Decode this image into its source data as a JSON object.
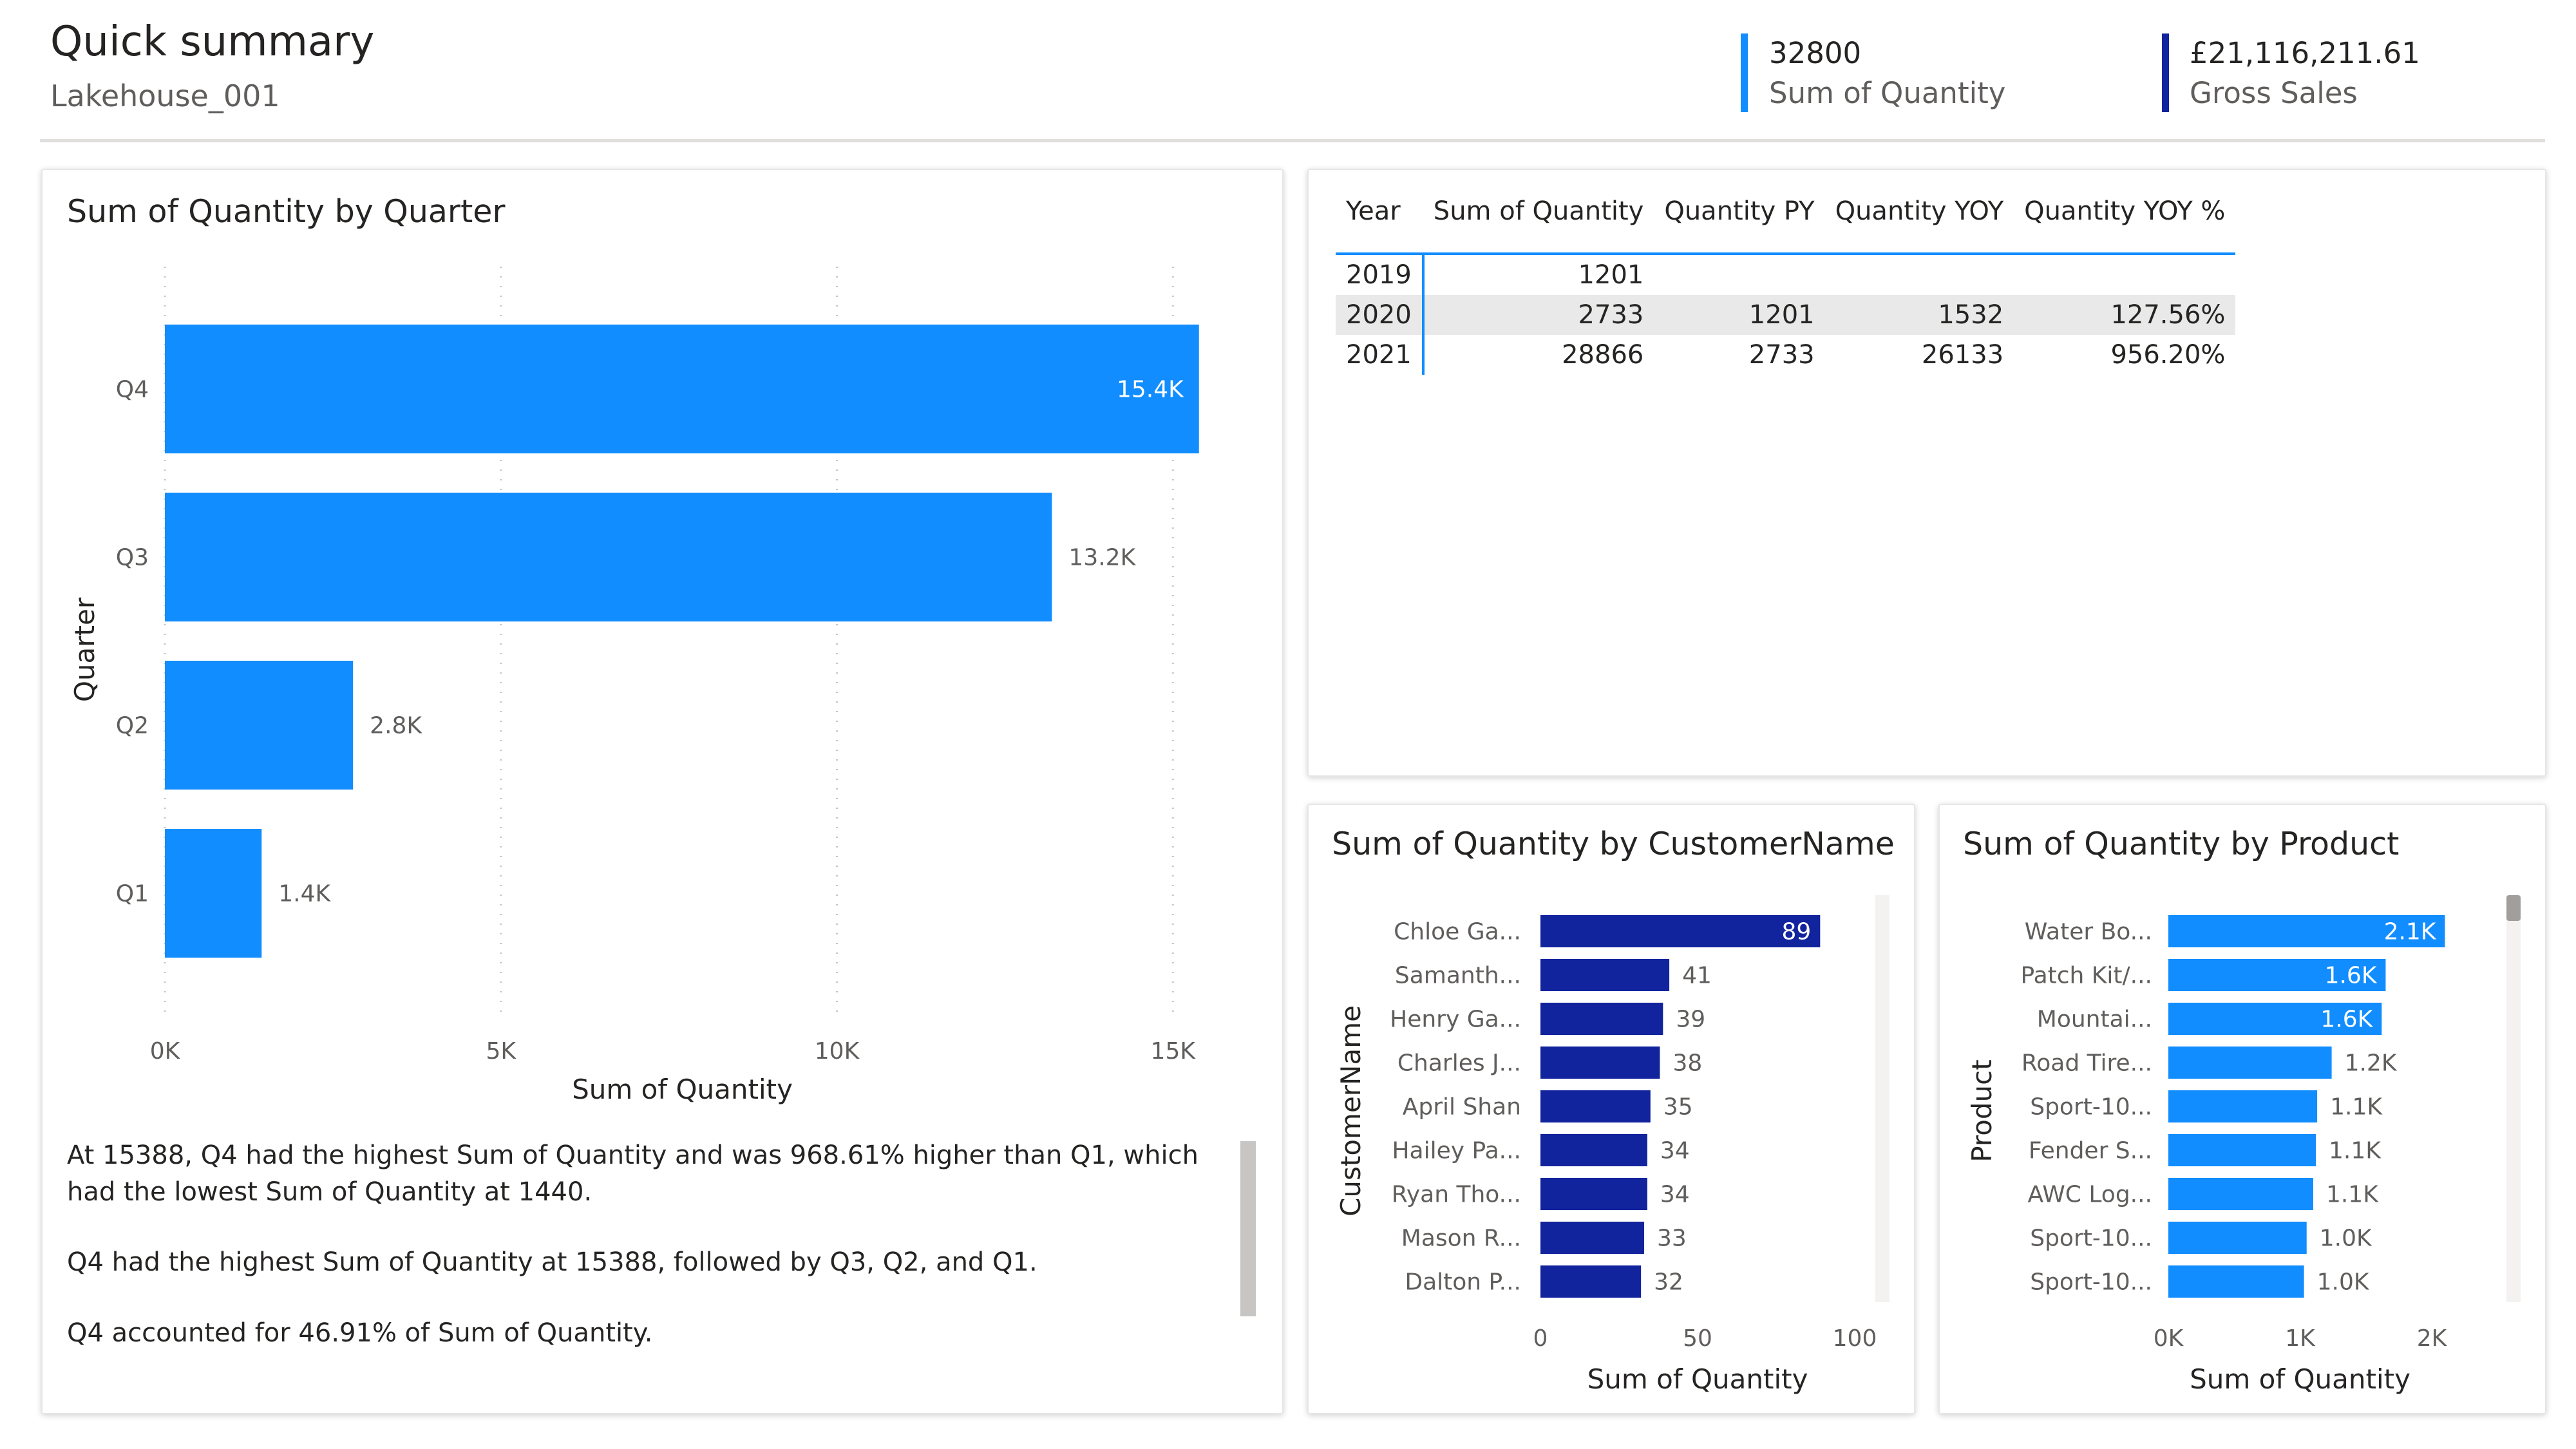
{
  "header": {
    "title": "Quick summary",
    "subtitle": "Lakehouse_001",
    "kpis": [
      {
        "value": "32800",
        "label": "Sum of Quantity",
        "color": "#118dff"
      },
      {
        "value": "£21,116,211.61",
        "label": "Gross Sales",
        "color": "#12239e"
      }
    ]
  },
  "quarter_chart": {
    "title": "Sum of Quantity by Quarter",
    "narrative": [
      "At 15388, Q4 had the highest Sum of Quantity and was 968.61% higher than Q1, which had the lowest Sum of Quantity at 1440.",
      "Q4 had the highest Sum of Quantity at 15388, followed by Q3, Q2, and Q1.",
      "Q4 accounted for 46.91% of Sum of Quantity."
    ]
  },
  "yoy_table": {
    "columns": [
      "Year",
      "Sum of Quantity",
      "Quantity PY",
      "Quantity YOY",
      "Quantity YOY %"
    ],
    "rows": [
      [
        "2019",
        "1201",
        "",
        "",
        ""
      ],
      [
        "2020",
        "2733",
        "1201",
        "1532",
        "127.56%"
      ],
      [
        "2021",
        "28866",
        "2733",
        "26133",
        "956.20%"
      ]
    ]
  },
  "customer_chart": {
    "title": "Sum of Quantity by CustomerName"
  },
  "product_chart": {
    "title": "Sum of Quantity by Product"
  },
  "chart_data": [
    {
      "type": "bar",
      "orientation": "horizontal",
      "title": "Sum of Quantity by Quarter",
      "categories": [
        "Q4",
        "Q3",
        "Q2",
        "Q1"
      ],
      "values": [
        15388,
        13200,
        2800,
        1440
      ],
      "data_labels": [
        "15.4K",
        "13.2K",
        "2.8K",
        "1.4K"
      ],
      "xlabel": "Sum of Quantity",
      "ylabel": "Quarter",
      "xlim": [
        0,
        15400
      ],
      "xticks": [
        0,
        5000,
        10000,
        15000
      ],
      "xtick_labels": [
        "0K",
        "5K",
        "10K",
        "15K"
      ],
      "grid": true,
      "color": "#118dff"
    },
    {
      "type": "bar",
      "orientation": "horizontal",
      "title": "Sum of Quantity by CustomerName",
      "categories": [
        "Chloe Ga...",
        "Samanth...",
        "Henry Ga...",
        "Charles J...",
        "April Shan",
        "Hailey Pa...",
        "Ryan Tho...",
        "Mason R...",
        "Dalton P..."
      ],
      "values": [
        89,
        41,
        39,
        38,
        35,
        34,
        34,
        33,
        32
      ],
      "data_labels": [
        "89",
        "41",
        "39",
        "38",
        "35",
        "34",
        "34",
        "33",
        "32"
      ],
      "xlabel": "Sum of Quantity",
      "ylabel": "CustomerName",
      "xlim": [
        0,
        100
      ],
      "xticks": [
        0,
        50,
        100
      ],
      "xtick_labels": [
        "0",
        "50",
        "100"
      ],
      "grid": false,
      "color": "#12239e"
    },
    {
      "type": "bar",
      "orientation": "horizontal",
      "title": "Sum of Quantity by Product",
      "categories": [
        "Water Bo...",
        "Patch Kit/...",
        "Mountai...",
        "Road Tire...",
        "Sport-10...",
        "Fender S...",
        "AWC Log...",
        "Sport-10...",
        "Sport-10..."
      ],
      "values": [
        2100,
        1650,
        1620,
        1240,
        1130,
        1120,
        1100,
        1050,
        1030
      ],
      "data_labels": [
        "2.1K",
        "1.6K",
        "1.6K",
        "1.2K",
        "1.1K",
        "1.1K",
        "1.1K",
        "1.0K",
        "1.0K"
      ],
      "xlabel": "Sum of Quantity",
      "ylabel": "Product",
      "xlim": [
        0,
        2000
      ],
      "xticks": [
        0,
        1000,
        2000
      ],
      "xtick_labels": [
        "0K",
        "1K",
        "2K"
      ],
      "grid": false,
      "color": "#118dff"
    }
  ]
}
